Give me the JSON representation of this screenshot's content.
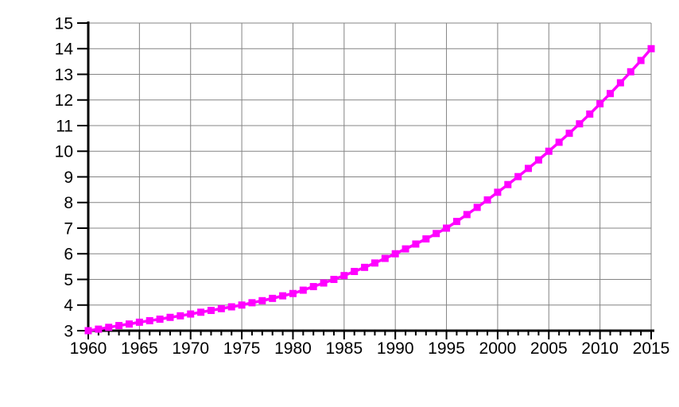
{
  "chart_data": {
    "type": "line",
    "title": "",
    "xlabel": "",
    "ylabel": "",
    "legend_position": "none",
    "grid": true,
    "xlim": [
      1960,
      2015
    ],
    "ylim": [
      3,
      15
    ],
    "x_major_ticks": [
      1960,
      1965,
      1970,
      1975,
      1980,
      1985,
      1990,
      1995,
      2000,
      2005,
      2010,
      2015
    ],
    "x_major_tick_labels": [
      "1960",
      "1965",
      "1970",
      "1975",
      "1980",
      "1985",
      "1990",
      "1995",
      "2000",
      "2005",
      "2010",
      "2015"
    ],
    "x_minor_tick_step": 1,
    "y_ticks": [
      3,
      4,
      5,
      6,
      7,
      8,
      9,
      10,
      11,
      12,
      13,
      14,
      15
    ],
    "y_tick_labels": [
      "3",
      "4",
      "5",
      "6",
      "7",
      "8",
      "9",
      "10",
      "11",
      "12",
      "13",
      "14",
      "15"
    ],
    "series": [
      {
        "name": "growth-curve",
        "x": [
          1960,
          1961,
          1962,
          1963,
          1964,
          1965,
          1966,
          1967,
          1968,
          1969,
          1970,
          1971,
          1972,
          1973,
          1974,
          1975,
          1976,
          1977,
          1978,
          1979,
          1980,
          1981,
          1982,
          1983,
          1984,
          1985,
          1986,
          1987,
          1988,
          1989,
          1990,
          1991,
          1992,
          1993,
          1994,
          1995,
          1996,
          1997,
          1998,
          1999,
          2000,
          2001,
          2002,
          2003,
          2004,
          2005,
          2006,
          2007,
          2008,
          2009,
          2010,
          2011,
          2012,
          2013,
          2014,
          2015
        ],
        "values": [
          3.0,
          3.06,
          3.13,
          3.2,
          3.26,
          3.33,
          3.39,
          3.45,
          3.52,
          3.58,
          3.65,
          3.72,
          3.79,
          3.86,
          3.93,
          4.0,
          4.09,
          4.17,
          4.26,
          4.36,
          4.45,
          4.58,
          4.72,
          4.86,
          5.0,
          5.15,
          5.31,
          5.47,
          5.64,
          5.82,
          6.0,
          6.19,
          6.38,
          6.58,
          6.79,
          7.0,
          7.26,
          7.53,
          7.81,
          8.1,
          8.4,
          8.7,
          9.01,
          9.33,
          9.66,
          10.0,
          10.35,
          10.7,
          11.07,
          11.45,
          11.85,
          12.25,
          12.67,
          13.1,
          13.54,
          14.0
        ],
        "marker": "square"
      }
    ],
    "anchor_points_5yr": {
      "years": [
        1960,
        1965,
        1970,
        1975,
        1980,
        1985,
        1990,
        1995,
        2000,
        2005,
        2010,
        2015
      ],
      "values": [
        3.0,
        3.33,
        3.65,
        4.0,
        4.45,
        5.15,
        6.0,
        7.0,
        8.4,
        10.0,
        11.85,
        14.0
      ]
    },
    "colors": {
      "line": "#ff00ff",
      "marker_fill": "#ff00ff",
      "grid": "#848484",
      "axis": "#000000",
      "tick_label": "#000000",
      "background": "#ffffff"
    }
  }
}
